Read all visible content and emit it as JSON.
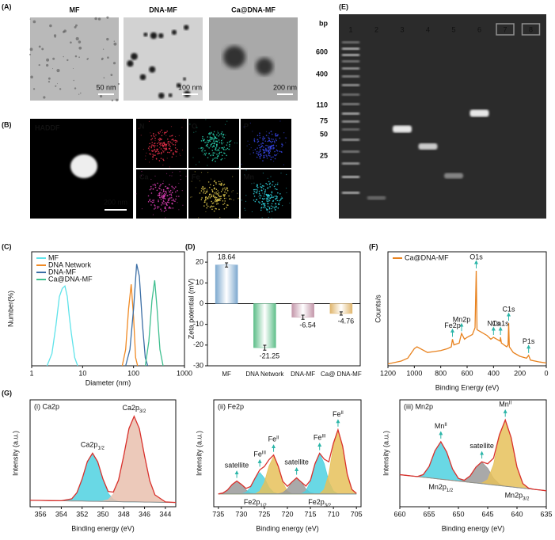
{
  "panel_labels": [
    "(A)",
    "(B)",
    "(C)",
    "(D)",
    "(E)",
    "(F)",
    "(G)"
  ],
  "tem": {
    "titles": [
      "MF",
      "DNA-MF",
      "Ca@DNA-MF"
    ],
    "scale_bars": [
      "50 nm",
      "100 nm",
      "200 nm"
    ]
  },
  "eds": {
    "channels": [
      "HADDF",
      "N",
      "O",
      "P",
      "Ca",
      "Fe",
      "Mn"
    ],
    "colors": [
      "#ffffff",
      "#e8304a",
      "#2ad3b0",
      "#3848e8",
      "#e040b8",
      "#e8d050",
      "#30dce8"
    ],
    "scale_bar": "200 nm"
  },
  "gel": {
    "unit": "bp",
    "lanes": [
      "1",
      "2",
      "3",
      "4",
      "5",
      "6",
      "7",
      "8"
    ],
    "ladder": [
      "600",
      "400",
      "110",
      "75",
      "50",
      "25"
    ]
  },
  "chart_data": [
    {
      "type": "line",
      "label": "(C)",
      "xlog": true,
      "xlabel": "Diameter (nm)",
      "ylabel": "Number(%)",
      "xlim": [
        1,
        1000
      ],
      "xticks": [
        1,
        10,
        100,
        1000
      ],
      "ylim": [
        0,
        14
      ],
      "legend": "upper left",
      "series": [
        {
          "name": "MF",
          "color": "#5fe3ea",
          "x": [
            2,
            2.5,
            3,
            3.5,
            4,
            4.5,
            5,
            5.5,
            6,
            7,
            8
          ],
          "values": [
            0,
            1.5,
            5,
            8.5,
            9.5,
            9.8,
            8.5,
            6,
            4,
            1,
            0
          ]
        },
        {
          "name": "DNA Network",
          "color": "#f08a24",
          "x": [
            60,
            70,
            80,
            90,
            100,
            110,
            120
          ],
          "values": [
            0,
            2,
            7,
            10,
            6,
            1,
            0
          ]
        },
        {
          "name": "DNA-MF",
          "color": "#3b6ea5",
          "x": [
            70,
            85,
            100,
            115,
            130,
            150,
            170,
            190
          ],
          "values": [
            0,
            2,
            7,
            12.5,
            11,
            5,
            1,
            0
          ]
        },
        {
          "name": "Ca@DNA-MF",
          "color": "#3fbf8f",
          "x": [
            170,
            200,
            230,
            260,
            290,
            330,
            380
          ],
          "values": [
            0,
            3,
            8,
            10.5,
            7,
            2,
            0
          ]
        }
      ]
    },
    {
      "type": "bar",
      "label": "(D)",
      "ylabel": "Zeta potential (mV)",
      "categories": [
        "MF",
        "DNA Network",
        "DNA-MF",
        "Ca@ DNA-MF"
      ],
      "values": [
        18.64,
        -21.25,
        -6.54,
        -4.76
      ],
      "errors": [
        1,
        1.2,
        1,
        0.8
      ],
      "colors": [
        "#7ea9cf",
        "#5fbf8a",
        "#c497aa",
        "#e0b66d"
      ],
      "ylim": [
        -30,
        25
      ],
      "yticks": [
        -30,
        -20,
        -10,
        0,
        10,
        20
      ]
    },
    {
      "type": "line",
      "label": "(F)",
      "xlabel": "Binding Energy (eV)",
      "ylabel": "Counts/s",
      "xlim": [
        1200,
        0
      ],
      "xticks": [
        1200,
        1000,
        800,
        600,
        400,
        200,
        0
      ],
      "ylim": [
        0,
        120
      ],
      "legend": "upper left",
      "arrow_color": "#2bb5a8",
      "series": [
        {
          "name": "Ca@DNA-MF",
          "color": "#e8821e",
          "x": [
            1200,
            1100,
            1050,
            1000,
            980,
            900,
            850,
            800,
            750,
            720,
            711,
            700,
            660,
            650,
            642,
            620,
            600,
            560,
            540,
            531,
            525,
            500,
            450,
            420,
            400,
            350,
            347,
            340,
            300,
            290,
            285,
            280,
            250,
            200,
            150,
            134,
            120,
            50,
            0
          ],
          "values": [
            2,
            5,
            8,
            18,
            20,
            14,
            15,
            16,
            18,
            20,
            28,
            22,
            24,
            30,
            34,
            28,
            30,
            33,
            40,
            100,
            38,
            36,
            32,
            28,
            30,
            26,
            30,
            24,
            20,
            22,
            45,
            20,
            14,
            10,
            8,
            11,
            6,
            4,
            3
          ]
        }
      ],
      "annotations": [
        {
          "text": "O1s",
          "x": 531
        },
        {
          "text": "Mn2p",
          "x": 642
        },
        {
          "text": "Fe2p",
          "x": 711
        },
        {
          "text": "Ca1s",
          "x": 347
        },
        {
          "text": "N1s",
          "x": 400
        },
        {
          "text": "C1s",
          "x": 285
        },
        {
          "text": "P1s",
          "x": 134
        }
      ]
    },
    {
      "type": "xps",
      "title": "(i) Ca2p",
      "xlabel": "Binding energy (eV)",
      "ylabel": "Intensity (a.u.)",
      "xlim": [
        357,
        343
      ],
      "xticks": [
        356,
        354,
        352,
        350,
        348,
        346,
        344
      ],
      "ylim": [
        0,
        100
      ],
      "x": [
        357,
        356,
        355,
        354,
        353,
        352.5,
        352,
        351.5,
        351,
        350.5,
        350,
        349.5,
        349,
        348.5,
        348,
        347.5,
        347,
        346.5,
        346,
        345.5,
        345,
        344,
        343
      ],
      "baseline": [
        6,
        5.9,
        5.7,
        5.6,
        5.4,
        5.4,
        5.3,
        5.2,
        5.1,
        5.1,
        5,
        4.9,
        4.9,
        4.8,
        4.7,
        4.6,
        4.6,
        4.5,
        4.4,
        4.4,
        4.3,
        4.1,
        4
      ],
      "baseline_color": "#8c8c8c",
      "series": [
        {
          "color": "#4fd1e0",
          "values": [
            6,
            5.9,
            5.7,
            5.6,
            7.4,
            13.1,
            25.9,
            42.2,
            50.1,
            42.1,
            25.6,
            12.6,
            6.9,
            4.8,
            4.7,
            4.6,
            4.6,
            4.5,
            4.4,
            4.4,
            4.3,
            4.1,
            4
          ]
        },
        {
          "color": "#e9bfae",
          "values": [
            6,
            5.9,
            5.7,
            5.6,
            5.4,
            5.4,
            5.3,
            5.2,
            5.1,
            5.1,
            5.4,
            6.6,
            11.7,
            24.8,
            47.8,
            73.2,
            84.6,
            73.1,
            47.5,
            24.4,
            11.1,
            4.5,
            4
          ]
        }
      ],
      "envelope": {
        "color": "#d9302c",
        "values": [
          6,
          5.9,
          5.7,
          5.6,
          7.4,
          13.1,
          25.9,
          42.2,
          50.1,
          42.1,
          26,
          14.3,
          13.7,
          24.9,
          47.8,
          73.2,
          84.6,
          73.1,
          47.5,
          24.4,
          11.1,
          4.5,
          4
        ]
      },
      "peak_labels": [
        {
          "text": "Ca2p",
          "sub": "1/2",
          "x": 351
        },
        {
          "text": "Ca2p",
          "sub": "3/2",
          "x": 347
        }
      ],
      "region_labels": []
    },
    {
      "type": "xps",
      "title": "(ii) Fe2p",
      "xlabel": "Binding energy (eV)",
      "ylabel": "Intensity (a.u.)",
      "xlim": [
        736,
        704
      ],
      "xticks": [
        735,
        730,
        725,
        720,
        715,
        710,
        705
      ],
      "ylim": [
        0,
        100
      ],
      "arrow_color": "#2bb5a8",
      "x": [
        735,
        734,
        733,
        732,
        731,
        730,
        729,
        728,
        727,
        726,
        725,
        724,
        723,
        722,
        721,
        720,
        719,
        718,
        717,
        716,
        715,
        714,
        713,
        712,
        711,
        710,
        709,
        708,
        707,
        706,
        705
      ],
      "baseline": [
        12,
        12,
        12,
        12,
        12,
        12,
        12,
        12,
        12,
        12,
        12,
        12,
        12,
        12,
        12,
        12,
        12,
        12,
        12,
        12,
        12,
        12,
        12,
        12,
        12,
        12,
        12,
        12,
        12,
        12,
        12
      ],
      "baseline_color": "#8c8c8c",
      "series": [
        {
          "color": "#9a9a9a",
          "values": [
            12,
            12.8,
            15.7,
            20.9,
            24,
            20.9,
            15.7,
            12.8,
            12,
            12,
            12,
            12,
            12,
            12,
            12,
            12,
            12,
            12,
            12,
            12,
            12,
            12,
            12,
            12,
            12,
            12,
            12,
            12,
            12,
            12,
            12
          ]
        },
        {
          "color": "#4fd1e0",
          "values": [
            12,
            12,
            12,
            12,
            12,
            12,
            13.4,
            18.1,
            26.9,
            32,
            26.9,
            18.1,
            13.4,
            12,
            12,
            12,
            12,
            12,
            12,
            12,
            12,
            12,
            12,
            12,
            12,
            12,
            12,
            12,
            12,
            12,
            12
          ]
        },
        {
          "color": "#e6c15a",
          "values": [
            12,
            12,
            12,
            12,
            12,
            12,
            12,
            12,
            12,
            14.5,
            22.7,
            38,
            47,
            38,
            22.7,
            14.5,
            12,
            12,
            12,
            12,
            12,
            12,
            12,
            12,
            12,
            12,
            12,
            12,
            12,
            12,
            12
          ]
        },
        {
          "color": "#9a9a9a",
          "values": [
            12,
            12,
            12,
            12,
            12,
            12,
            12,
            12,
            12,
            12,
            12,
            12,
            12,
            12,
            13.1,
            16.6,
            23.2,
            27,
            23.2,
            16.6,
            13.1,
            12,
            12,
            12,
            12,
            12,
            12,
            12,
            12,
            12,
            12
          ]
        },
        {
          "color": "#4fd1e0",
          "values": [
            12,
            12,
            12,
            12,
            12,
            12,
            12,
            12,
            12,
            12,
            12,
            12,
            12,
            12,
            12,
            12,
            12,
            12,
            12,
            14.7,
            23.6,
            40.3,
            50,
            40.3,
            23.6,
            14.7,
            12,
            12,
            12,
            12,
            12
          ]
        },
        {
          "color": "#e6c15a",
          "values": [
            12,
            12,
            12,
            12,
            12,
            12,
            12,
            12,
            12,
            12,
            12,
            12,
            12,
            12,
            12,
            12,
            12,
            12,
            12,
            12,
            12,
            12,
            12,
            16.2,
            30.4,
            56.6,
            72,
            56.6,
            30.4,
            16.2,
            12.5
          ]
        }
      ],
      "envelope": {
        "color": "#d9302c",
        "values": [
          12,
          12.8,
          15.7,
          20.9,
          24,
          20.9,
          17.1,
          18.9,
          26.9,
          34.5,
          37.6,
          44.1,
          48.4,
          38,
          23.8,
          19.1,
          23.2,
          27,
          23.2,
          19.3,
          24.7,
          40.3,
          50,
          44.5,
          42,
          59.3,
          72,
          56.6,
          30.4,
          16.2,
          12.5
        ]
      },
      "peak_labels": [
        {
          "text": "satellite",
          "x": 731
        },
        {
          "text": "Fe",
          "sup": "III",
          "x": 726
        },
        {
          "text": "Fe",
          "sup": "II",
          "x": 723
        },
        {
          "text": "satellite",
          "x": 718
        },
        {
          "text": "Fe",
          "sup": "III",
          "x": 713
        },
        {
          "text": "Fe",
          "sup": "II",
          "x": 709
        }
      ],
      "region_labels": [
        {
          "text": "Fe2p",
          "sub": "1/2",
          "x": 727
        },
        {
          "text": "Fe2p",
          "sub": "3/2",
          "x": 713
        }
      ]
    },
    {
      "type": "xps",
      "title": "(iii) Mn2p",
      "xlabel": "Binding energy (eV)",
      "ylabel": "Intensity (a.u.)",
      "xlim": [
        660,
        635
      ],
      "xticks": [
        660,
        655,
        650,
        645,
        640,
        635
      ],
      "ylim": [
        0,
        100
      ],
      "arrow_color": "#2bb5a8",
      "x": [
        660,
        659,
        658,
        657,
        656,
        655,
        654,
        653,
        652,
        651,
        650,
        649,
        648,
        647,
        646,
        645,
        644,
        643,
        642,
        641,
        640,
        639,
        638,
        637,
        636,
        635
      ],
      "baseline": [
        30,
        29.4,
        28.8,
        28.2,
        27.6,
        27,
        26.4,
        25.8,
        25.2,
        24.6,
        24,
        23.4,
        22.8,
        22.2,
        21.6,
        21,
        20.4,
        19.8,
        19.2,
        18.6,
        18,
        17.4,
        16.8,
        16.2,
        15.6,
        15
      ],
      "baseline_color": "#8c8c8c",
      "series": [
        {
          "color": "#4fd1e0",
          "values": [
            30,
            29.4,
            28.8,
            28.2,
            30.1,
            37.7,
            52.4,
            60.8,
            51.2,
            35.3,
            26.5,
            23.4,
            22.8,
            22.2,
            21.6,
            21,
            20.4,
            19.8,
            19.2,
            18.6,
            18,
            17.4,
            16.8,
            16.2,
            15.6,
            15
          ]
        },
        {
          "color": "#9a9a9a",
          "values": [
            30,
            29.4,
            28.8,
            28.2,
            27.6,
            27,
            26.4,
            25.8,
            25.2,
            24.6,
            24,
            24.8,
            28.9,
            37.1,
            41.6,
            35.9,
            26.5,
            21.2,
            19.2,
            18.6,
            18,
            17.4,
            16.8,
            16.2,
            15.6,
            15
          ]
        },
        {
          "color": "#e6c15a",
          "values": [
            30,
            29.4,
            28.8,
            28.2,
            27.6,
            27,
            26.4,
            25.8,
            25.2,
            24.6,
            24,
            23.4,
            22.8,
            22.2,
            22.1,
            25.3,
            39.4,
            65.9,
            81.2,
            64.7,
            37,
            21.7,
            17.3,
            16.2,
            15.6,
            15
          ]
        }
      ],
      "envelope": {
        "color": "#d9302c",
        "values": [
          30,
          29.4,
          28.8,
          28.2,
          30.1,
          37.7,
          52.4,
          60.8,
          51.2,
          35.3,
          26.5,
          24.8,
          28.9,
          37.1,
          42.1,
          40.2,
          45.5,
          67.3,
          81.2,
          64.7,
          37,
          21.7,
          17.3,
          16.2,
          15.6,
          15
        ]
      },
      "peak_labels": [
        {
          "text": "Mn",
          "sup": "II",
          "x": 653
        },
        {
          "text": "satellite",
          "x": 646
        },
        {
          "text": "Mn",
          "sup": "II",
          "x": 642
        }
      ],
      "region_labels": [
        {
          "text": "Mn2p",
          "sub": "1/2",
          "x": 653
        },
        {
          "text": "Mn2p",
          "sub": "3/2",
          "x": 640
        }
      ]
    }
  ]
}
